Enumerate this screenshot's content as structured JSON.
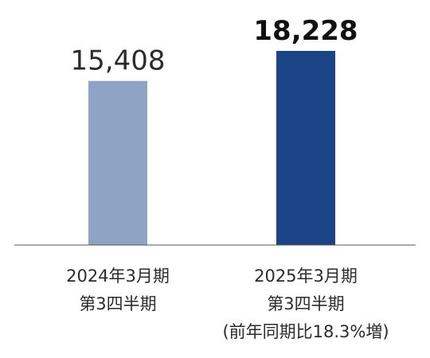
{
  "chart_data": {
    "type": "bar",
    "categories": [
      [
        "2024年3月期",
        "第3四半期"
      ],
      [
        "2025年3月期",
        "第3四半期",
        "(前年同期比18.3%増)"
      ]
    ],
    "values": [
      15408,
      18228
    ],
    "value_labels": [
      "15,408",
      "18,228"
    ],
    "bar_colors": [
      "#8fa3c4",
      "#1a4486"
    ],
    "highlight_index": 1,
    "baseline_color": "#555555",
    "title": "",
    "xlabel": "",
    "ylabel": "",
    "ylim": [
      0,
      18228
    ],
    "grid": false,
    "legend": "none"
  }
}
